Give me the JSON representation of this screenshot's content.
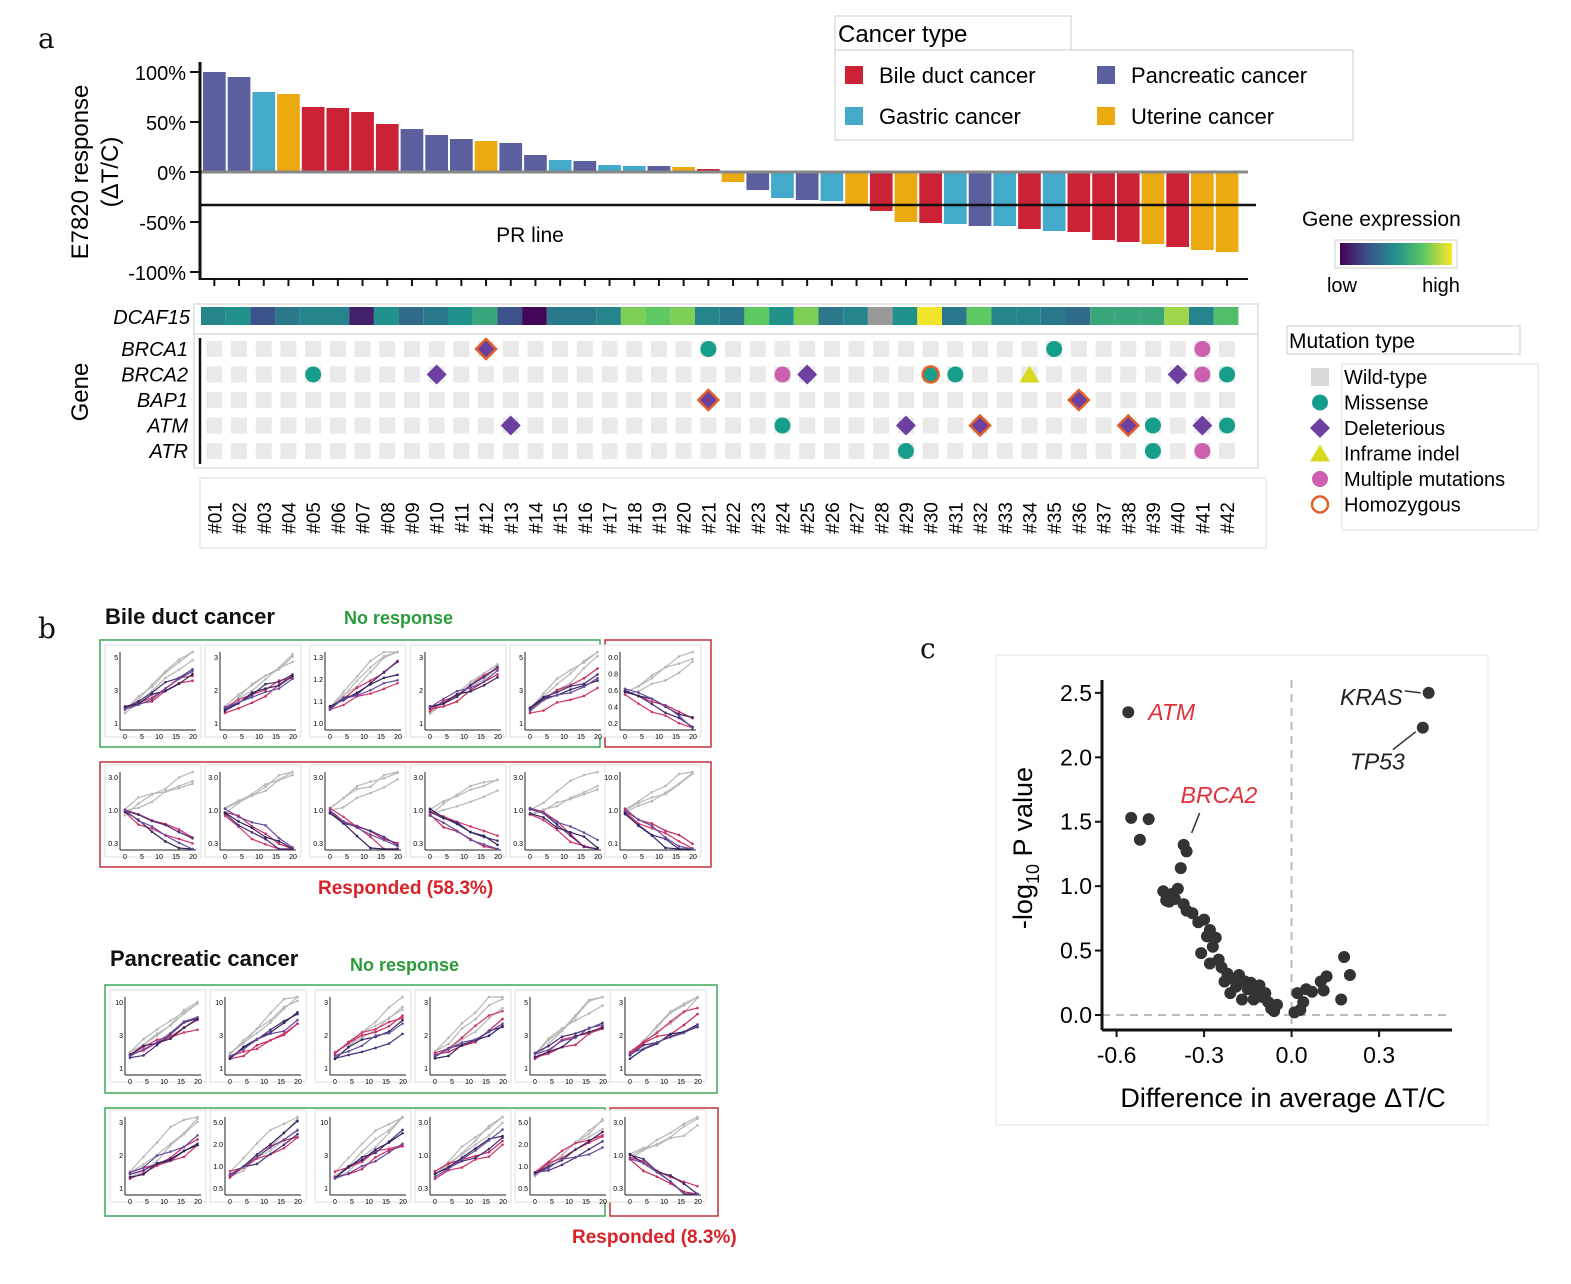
{
  "panels": {
    "a": "a",
    "b": "b",
    "c": "c"
  },
  "chart_data": [
    {
      "type": "bar",
      "panel": "a",
      "ylabel_line1": "E7820 response",
      "ylabel_line2": "(ΔT/C)",
      "yticks": [
        "100%",
        "50%",
        "0%",
        "-50%",
        "-100%"
      ],
      "ylim": [
        -100,
        100
      ],
      "pr_line_value": -33,
      "pr_line_label": "PR line",
      "legend_title": "Cancer type",
      "categories": [
        "#01",
        "#02",
        "#03",
        "#04",
        "#05",
        "#06",
        "#07",
        "#08",
        "#09",
        "#10",
        "#11",
        "#12",
        "#13",
        "#14",
        "#15",
        "#16",
        "#17",
        "#18",
        "#19",
        "#20",
        "#21",
        "#22",
        "#23",
        "#24",
        "#25",
        "#26",
        "#27",
        "#28",
        "#29",
        "#30",
        "#31",
        "#32",
        "#33",
        "#34",
        "#35",
        "#36",
        "#37",
        "#38",
        "#39",
        "#40",
        "#41",
        "#42"
      ],
      "values": [
        100,
        95,
        80,
        78,
        65,
        64,
        60,
        48,
        43,
        37,
        33,
        31,
        29,
        17,
        12,
        11,
        7,
        6,
        6,
        5,
        3,
        -10,
        -18,
        -26,
        -28,
        -29,
        -33,
        -39,
        -50,
        -51,
        -52,
        -54,
        -54,
        -57,
        -59,
        -60,
        -68,
        -70,
        -72,
        -75,
        -78,
        -80
      ],
      "cancer_types": [
        "P",
        "P",
        "G",
        "U",
        "B",
        "B",
        "B",
        "B",
        "P",
        "P",
        "P",
        "U",
        "P",
        "P",
        "G",
        "P",
        "G",
        "G",
        "P",
        "U",
        "B",
        "U",
        "P",
        "G",
        "P",
        "G",
        "U",
        "B",
        "U",
        "B",
        "G",
        "P",
        "G",
        "B",
        "G",
        "B",
        "B",
        "B",
        "U",
        "B",
        "U",
        "U"
      ],
      "legend": [
        {
          "key": "B",
          "name": "Bile duct cancer",
          "color": "#cc2236"
        },
        {
          "key": "G",
          "name": "Gastric cancer",
          "color": "#44aacc"
        },
        {
          "key": "P",
          "name": "Pancreatic cancer",
          "color": "#5c5f9e"
        },
        {
          "key": "U",
          "name": "Uterine cancer",
          "color": "#eaaa10"
        }
      ]
    },
    {
      "type": "heatmap",
      "panel": "a",
      "row_label": "DCAF15",
      "gene_axis_label": "Gene",
      "expression_legend_title": "Gene expression",
      "expression_low": "low",
      "expression_high": "high",
      "expression_levels": [
        0.45,
        0.5,
        0.25,
        0.4,
        0.45,
        0.45,
        0.1,
        0.5,
        0.35,
        0.4,
        0.5,
        0.6,
        0.25,
        0.02,
        0.4,
        0.4,
        0.45,
        0.8,
        0.75,
        0.8,
        0.45,
        0.4,
        0.75,
        0.5,
        0.8,
        0.4,
        0.45,
        null,
        0.5,
        0.98,
        0.4,
        0.75,
        0.45,
        0.45,
        0.4,
        0.35,
        0.6,
        0.6,
        0.6,
        0.85,
        0.45,
        0.7
      ],
      "mutation_legend_title": "Mutation type",
      "mutation_legend": [
        {
          "key": "wt",
          "name": "Wild-type",
          "color": "#d9d9d9"
        },
        {
          "key": "mis",
          "name": "Missense",
          "color": "#159e8c"
        },
        {
          "key": "del",
          "name": "Deleterious",
          "color": "#6c3fa0"
        },
        {
          "key": "ind",
          "name": "Inframe indel",
          "color": "#d8d81c"
        },
        {
          "key": "mul",
          "name": "Multiple mutations",
          "color": "#cc5fae"
        },
        {
          "key": "hom",
          "name": "Homozygous",
          "color": "#e0602a"
        }
      ],
      "genes": [
        "BRCA1",
        "BRCA2",
        "BAP1",
        "ATM",
        "ATR"
      ],
      "mutations": [
        {
          "gene": "BRCA1",
          "sample": "#12",
          "type": "del",
          "homozygous": true
        },
        {
          "gene": "BRCA1",
          "sample": "#21",
          "type": "mis"
        },
        {
          "gene": "BRCA1",
          "sample": "#35",
          "type": "mis"
        },
        {
          "gene": "BRCA1",
          "sample": "#41",
          "type": "mul"
        },
        {
          "gene": "BRCA2",
          "sample": "#05",
          "type": "mis"
        },
        {
          "gene": "BRCA2",
          "sample": "#10",
          "type": "del"
        },
        {
          "gene": "BRCA2",
          "sample": "#24",
          "type": "mul"
        },
        {
          "gene": "BRCA2",
          "sample": "#25",
          "type": "del"
        },
        {
          "gene": "BRCA2",
          "sample": "#30",
          "type": "mis",
          "homozygous": true
        },
        {
          "gene": "BRCA2",
          "sample": "#31",
          "type": "mis"
        },
        {
          "gene": "BRCA2",
          "sample": "#34",
          "type": "ind"
        },
        {
          "gene": "BRCA2",
          "sample": "#40",
          "type": "del"
        },
        {
          "gene": "BRCA2",
          "sample": "#41",
          "type": "mul"
        },
        {
          "gene": "BRCA2",
          "sample": "#42",
          "type": "mis"
        },
        {
          "gene": "BAP1",
          "sample": "#21",
          "type": "del",
          "homozygous": true
        },
        {
          "gene": "BAP1",
          "sample": "#36",
          "type": "del",
          "homozygous": true
        },
        {
          "gene": "ATM",
          "sample": "#13",
          "type": "del"
        },
        {
          "gene": "ATM",
          "sample": "#24",
          "type": "mis"
        },
        {
          "gene": "ATM",
          "sample": "#29",
          "type": "del"
        },
        {
          "gene": "ATM",
          "sample": "#32",
          "type": "del",
          "homozygous": true
        },
        {
          "gene": "ATM",
          "sample": "#38",
          "type": "del",
          "homozygous": true
        },
        {
          "gene": "ATM",
          "sample": "#39",
          "type": "mis"
        },
        {
          "gene": "ATM",
          "sample": "#41",
          "type": "del"
        },
        {
          "gene": "ATM",
          "sample": "#42",
          "type": "mis"
        },
        {
          "gene": "ATR",
          "sample": "#29",
          "type": "mis"
        },
        {
          "gene": "ATR",
          "sample": "#39",
          "type": "mis"
        },
        {
          "gene": "ATR",
          "sample": "#41",
          "type": "mul"
        }
      ]
    },
    {
      "type": "line",
      "panel": "b",
      "groups": [
        {
          "name": "Bile duct cancer",
          "no_response_label": "No response",
          "responded_label": "Responded (58.3%)"
        },
        {
          "name": "Pancreatic cancer",
          "no_response_label": "No response",
          "responded_label": "Responded (8.3%)"
        }
      ],
      "x_ticks": [
        "0",
        "5",
        "10",
        "15",
        "20"
      ],
      "panel_yticks": [
        [
          "5",
          "3",
          "1"
        ],
        [
          "3",
          "2",
          "1"
        ],
        [
          "1.3",
          "1.2",
          "1.1",
          "1.0"
        ],
        [
          "3",
          "2",
          "1"
        ],
        [
          "5",
          "3",
          "1"
        ],
        [
          "0.0",
          "0.8",
          "0.6",
          "0.4",
          "0.2"
        ],
        [
          "3.0",
          "1.0",
          "0.3"
        ],
        [
          "3.0",
          "1.0",
          "0.3"
        ],
        [
          "3.0",
          "1.0",
          "0.3"
        ],
        [
          "3.0",
          "1.0",
          "0.3"
        ],
        [
          "3.0",
          "1.0",
          "0.3"
        ],
        [
          "10.0",
          "1.0",
          "0.1"
        ],
        [
          "10",
          "3",
          "1"
        ],
        [
          "10",
          "3",
          "1"
        ],
        [
          "3",
          "2",
          "1"
        ],
        [
          "3",
          "2",
          "1"
        ],
        [
          "5",
          "3",
          "1"
        ],
        [
          "3",
          "2",
          "1"
        ],
        [
          "3",
          "2",
          "1"
        ],
        [
          "5.0",
          "2.0",
          "1.0",
          "0.5"
        ],
        [
          "10",
          "3",
          "1"
        ],
        [
          "3.0",
          "1.0",
          "0.3"
        ],
        [
          "5.0",
          "2.0",
          "1.0",
          "0.5"
        ],
        [
          "3.0",
          "1.0",
          "0.3"
        ]
      ]
    },
    {
      "type": "scatter",
      "panel": "c",
      "xlabel": "Difference in average ΔT/C",
      "ylabel": "-log10 P value",
      "xticks": [
        "-0.6",
        "-0.3",
        "0.0",
        "0.3"
      ],
      "yticks": [
        "2.5",
        "2.0",
        "1.5",
        "1.0",
        "0.5",
        "0.0"
      ],
      "xlim": [
        -0.65,
        0.55
      ],
      "ylim": [
        0,
        2.6
      ],
      "labels": [
        {
          "text": "ATM",
          "x": -0.56,
          "y": 2.35,
          "color": "#e0303a"
        },
        {
          "text": "BRCA2",
          "x": -0.37,
          "y": 1.32,
          "color": "#e0303a"
        },
        {
          "text": "KRAS",
          "x": 0.47,
          "y": 2.5,
          "color": "#222222"
        },
        {
          "text": "TP53",
          "x": 0.45,
          "y": 2.23,
          "color": "#222222"
        }
      ],
      "points": [
        [
          -0.56,
          2.35
        ],
        [
          0.47,
          2.5
        ],
        [
          0.45,
          2.23
        ],
        [
          -0.55,
          1.53
        ],
        [
          -0.52,
          1.36
        ],
        [
          -0.49,
          1.52
        ],
        [
          -0.37,
          1.32
        ],
        [
          -0.36,
          1.27
        ],
        [
          -0.38,
          1.14
        ],
        [
          -0.44,
          0.96
        ],
        [
          -0.43,
          0.89
        ],
        [
          -0.41,
          0.94
        ],
        [
          -0.39,
          0.98
        ],
        [
          -0.42,
          0.88
        ],
        [
          -0.4,
          0.9
        ],
        [
          -0.37,
          0.86
        ],
        [
          -0.36,
          0.81
        ],
        [
          -0.34,
          0.79
        ],
        [
          -0.32,
          0.72
        ],
        [
          -0.3,
          0.74
        ],
        [
          -0.28,
          0.66
        ],
        [
          -0.29,
          0.61
        ],
        [
          -0.26,
          0.6
        ],
        [
          -0.31,
          0.48
        ],
        [
          -0.27,
          0.53
        ],
        [
          -0.25,
          0.43
        ],
        [
          -0.24,
          0.37
        ],
        [
          -0.22,
          0.32
        ],
        [
          -0.2,
          0.28
        ],
        [
          -0.18,
          0.31
        ],
        [
          -0.16,
          0.26
        ],
        [
          -0.15,
          0.2
        ],
        [
          -0.14,
          0.25
        ],
        [
          -0.12,
          0.18
        ],
        [
          -0.11,
          0.23
        ],
        [
          -0.1,
          0.14
        ],
        [
          -0.13,
          0.12
        ],
        [
          -0.09,
          0.17
        ],
        [
          -0.08,
          0.1
        ],
        [
          -0.07,
          0.05
        ],
        [
          -0.05,
          0.08
        ],
        [
          -0.06,
          0.03
        ],
        [
          -0.17,
          0.12
        ],
        [
          -0.21,
          0.17
        ],
        [
          -0.19,
          0.22
        ],
        [
          -0.28,
          0.4
        ],
        [
          -0.23,
          0.26
        ],
        [
          0.02,
          0.17
        ],
        [
          0.04,
          0.1
        ],
        [
          0.05,
          0.2
        ],
        [
          0.07,
          0.18
        ],
        [
          0.1,
          0.26
        ],
        [
          0.12,
          0.3
        ],
        [
          0.11,
          0.19
        ],
        [
          0.18,
          0.45
        ],
        [
          0.2,
          0.31
        ],
        [
          0.17,
          0.12
        ],
        [
          0.03,
          0.04
        ],
        [
          0.01,
          0.02
        ]
      ]
    }
  ]
}
